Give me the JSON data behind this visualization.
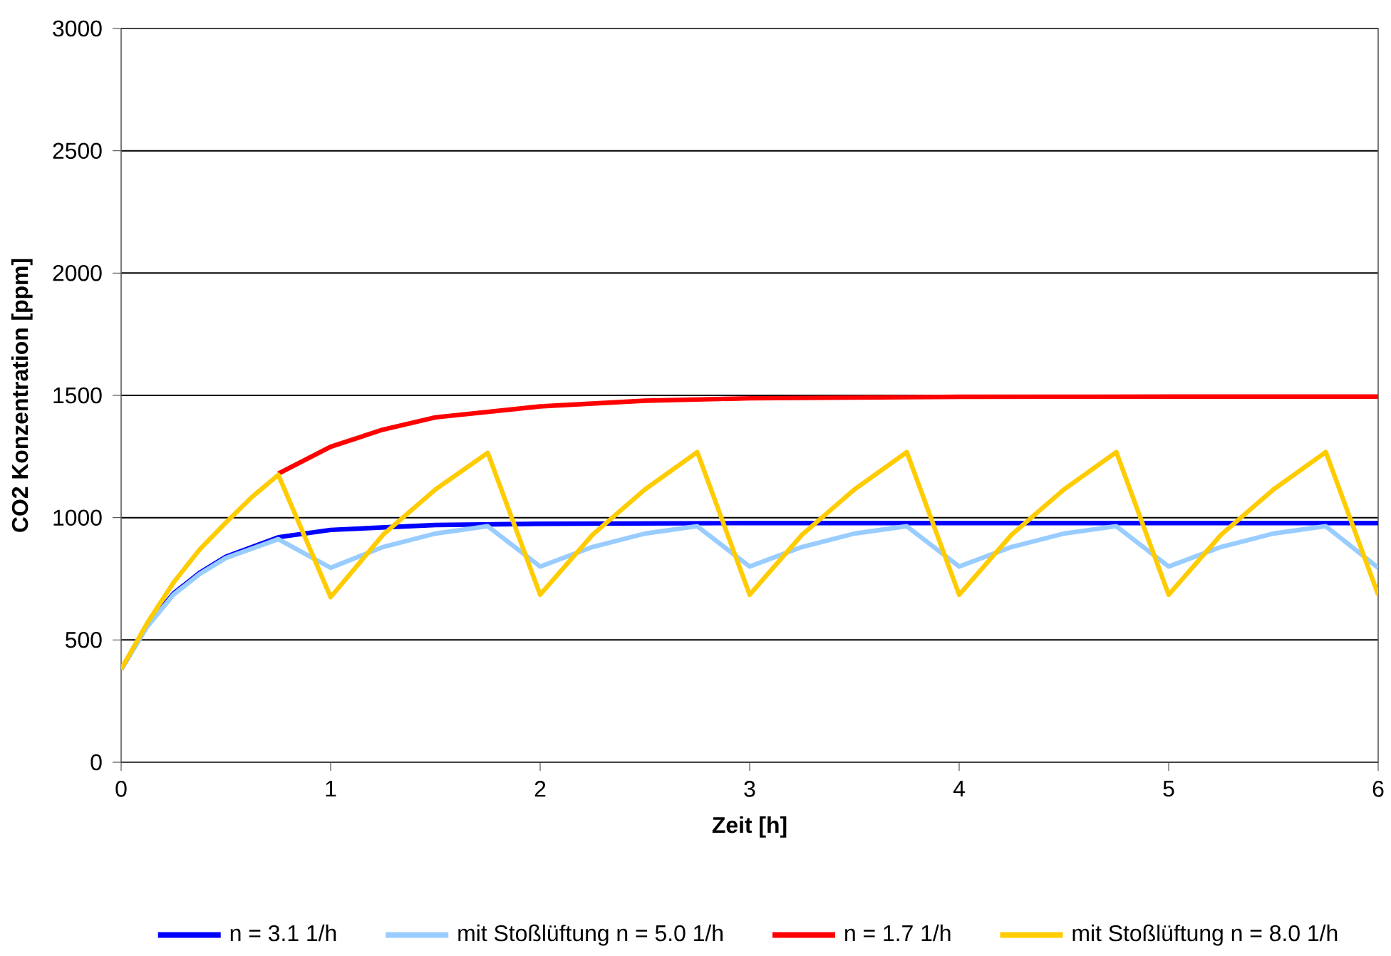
{
  "chart_data": {
    "type": "line",
    "xlabel": "Zeit [h]",
    "ylabel": "CO2 Konzentration [ppm]",
    "xlim": [
      0,
      6
    ],
    "xticks": [
      0,
      1,
      2,
      3,
      4,
      5,
      6
    ],
    "ylim": [
      0,
      3000
    ],
    "yticks": [
      0,
      500,
      1000,
      1500,
      2000,
      2500,
      3000
    ],
    "grid": "y",
    "legend": "bottom",
    "marker": "none",
    "line_style": "solid",
    "series": [
      {
        "name": "n = 3.1 1/h",
        "color": "#0000ff",
        "x": [
          0,
          0.125,
          0.25,
          0.375,
          0.5,
          0.75,
          1,
          1.5,
          2,
          3,
          6
        ],
        "values": [
          380,
          560,
          690,
          775,
          840,
          920,
          950,
          970,
          975,
          978,
          978
        ]
      },
      {
        "name": "mit Stoßlüftung n = 5.0 1/h",
        "color": "#99ccff",
        "x": [
          0,
          0.125,
          0.25,
          0.375,
          0.5,
          0.75,
          1,
          1.25,
          1.5,
          1.75,
          2,
          2.25,
          2.5,
          2.75,
          3,
          3.25,
          3.5,
          3.75,
          4,
          4.25,
          4.5,
          4.75,
          5,
          5.25,
          5.5,
          5.75,
          6
        ],
        "values": [
          380,
          555,
          685,
          770,
          835,
          912,
          795,
          880,
          935,
          965,
          800,
          880,
          935,
          965,
          800,
          880,
          935,
          965,
          800,
          880,
          935,
          965,
          800,
          880,
          935,
          965,
          795
        ]
      },
      {
        "name": "n = 1.7 1/h",
        "color": "#ff0000",
        "x": [
          0.75,
          1,
          1.25,
          1.5,
          2,
          2.5,
          3,
          4,
          5,
          6
        ],
        "values": [
          1180,
          1290,
          1360,
          1410,
          1455,
          1478,
          1488,
          1494,
          1495,
          1495
        ]
      },
      {
        "name": "mit Stoßlüftung n = 8.0 1/h",
        "color": "#ffcc00",
        "x": [
          0,
          0.125,
          0.25,
          0.375,
          0.5,
          0.625,
          0.75,
          1,
          1.25,
          1.5,
          1.75,
          2,
          2.25,
          2.5,
          2.75,
          3,
          3.25,
          3.5,
          3.75,
          4,
          4.25,
          4.5,
          4.75,
          5,
          5.25,
          5.5,
          5.75,
          6
        ],
        "values": [
          380,
          570,
          735,
          870,
          980,
          1085,
          1175,
          675,
          930,
          1115,
          1265,
          685,
          930,
          1115,
          1268,
          685,
          930,
          1115,
          1268,
          685,
          930,
          1115,
          1268,
          685,
          930,
          1115,
          1268,
          685
        ]
      }
    ]
  }
}
